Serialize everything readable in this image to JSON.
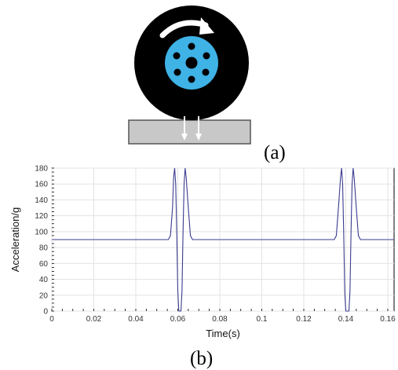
{
  "diagram": {
    "caption_a": "(a)",
    "caption_b": "(b)",
    "colors": {
      "tire": "#000000",
      "hub": "#3fb2e6",
      "hub_holes": "#000000",
      "ground_fill": "#c8c8c8",
      "ground_stroke": "#555555",
      "arrows": "#ffffff"
    },
    "icons": [
      "rotation-arrow-icon",
      "force-arrow-icon"
    ]
  },
  "chart_data": {
    "type": "line",
    "title": "",
    "xlabel": "Time(s)",
    "ylabel": "Acceleration/g",
    "xlim": [
      0,
      0.163
    ],
    "ylim": [
      0,
      180
    ],
    "xticks": [
      0,
      0.02,
      0.04,
      0.06,
      0.08,
      0.1,
      0.12,
      0.14,
      0.16
    ],
    "xtick_labels": [
      "0",
      "0.02",
      "0.04",
      "0.06",
      "0.08",
      "0.1",
      "0.12",
      "0.14",
      "0.16"
    ],
    "yticks": [
      0,
      20,
      40,
      60,
      80,
      100,
      120,
      140,
      160,
      180
    ],
    "ytick_labels": [
      "0",
      "20",
      "40",
      "60",
      "80",
      "100",
      "120",
      "140",
      "160",
      "180"
    ],
    "grid": true,
    "line_color": "#3b3b8f",
    "series": [
      {
        "x": [
          0,
          0.0555,
          0.0565,
          0.0575,
          0.058,
          0.0585,
          0.059,
          0.0595,
          0.06,
          0.0605,
          0.061,
          0.0615,
          0.062,
          0.0625,
          0.063,
          0.0635,
          0.064,
          0.065,
          0.066,
          0.067,
          0.1345,
          0.1355,
          0.1365,
          0.1375,
          0.138,
          0.1385,
          0.139,
          0.1395,
          0.14,
          0.1405,
          0.141,
          0.1415,
          0.142,
          0.1425,
          0.143,
          0.1435,
          0.144,
          0.145,
          0.146,
          0.147,
          0.163
        ],
        "y": [
          90,
          90,
          95,
          130,
          168,
          180,
          160,
          100,
          25,
          0,
          0,
          0,
          25,
          100,
          160,
          180,
          168,
          130,
          95,
          90,
          90,
          95,
          130,
          168,
          180,
          160,
          100,
          25,
          0,
          0,
          0,
          0,
          25,
          100,
          160,
          180,
          168,
          130,
          95,
          90,
          90
        ]
      }
    ]
  }
}
